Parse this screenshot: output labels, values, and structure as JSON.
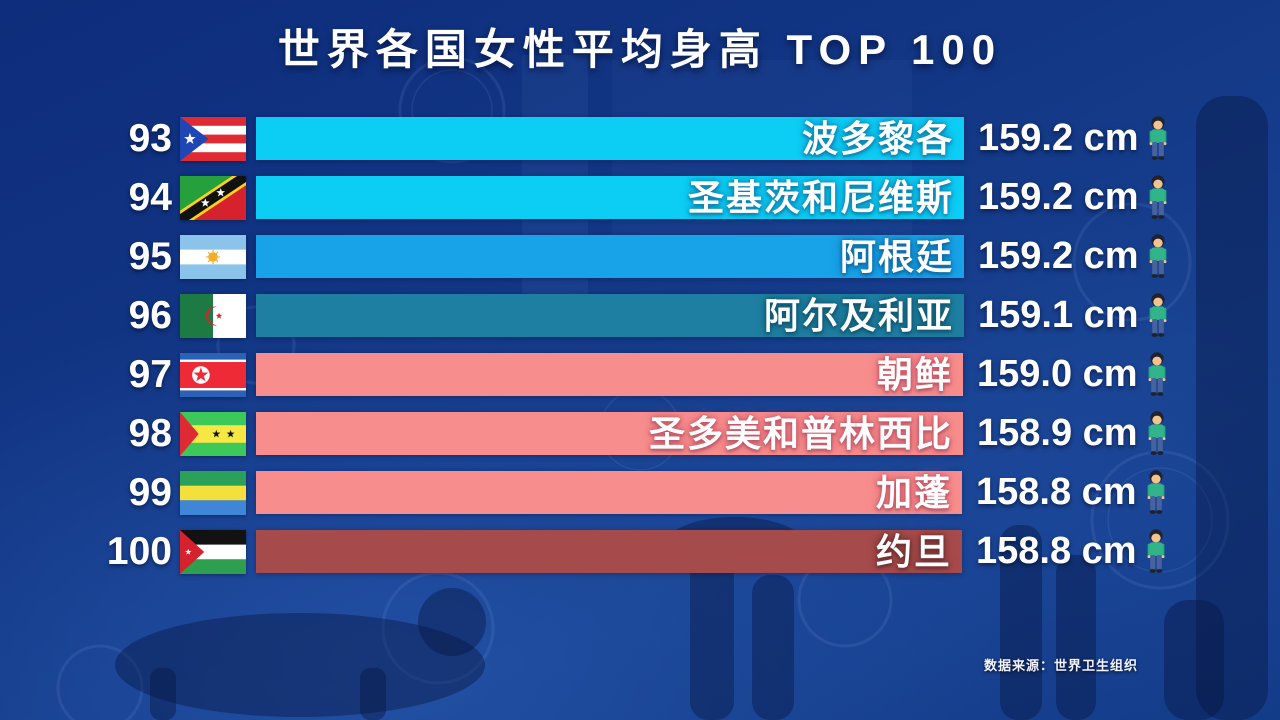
{
  "title": "世界各国女性平均身高 TOP 100",
  "source": "数据来源：世界卫生组织",
  "unit": "cm",
  "chart_data": {
    "type": "bar",
    "orientation": "horizontal",
    "title": "世界各国女性平均身高 TOP 100",
    "ranks": [
      93,
      94,
      95,
      96,
      97,
      98,
      99,
      100
    ],
    "categories": [
      "波多黎各",
      "圣基茨和尼维斯",
      "阿根廷",
      "阿尔及利亚",
      "朝鲜",
      "圣多美和普林西比",
      "加蓬",
      "约旦"
    ],
    "values": [
      159.2,
      159.2,
      159.2,
      159.1,
      159.0,
      158.9,
      158.8,
      158.8
    ],
    "unit": "cm",
    "axis_shown": false,
    "grid": false,
    "legend": null,
    "value_label_position": "outside-right",
    "category_label_position": "inside-right",
    "source": "数据来源：世界卫生组织"
  },
  "rows": [
    {
      "rank": "93",
      "country": "波多黎各",
      "value_label": "159.2 cm",
      "value": 159.2,
      "flag": "puerto-rico",
      "color": "#0ccef5",
      "glow": "#0a85b6"
    },
    {
      "rank": "94",
      "country": "圣基茨和尼维斯",
      "value_label": "159.2 cm",
      "value": 159.2,
      "flag": "saint-kitts-nevis",
      "color": "#0ccef5",
      "glow": "#0a85b6"
    },
    {
      "rank": "95",
      "country": "阿根廷",
      "value_label": "159.2 cm",
      "value": 159.2,
      "flag": "argentina",
      "color": "#18a2e8",
      "glow": "#0c6ca8"
    },
    {
      "rank": "96",
      "country": "阿尔及利亚",
      "value_label": "159.1 cm",
      "value": 159.1,
      "flag": "algeria",
      "color": "#1f7fa2",
      "glow": "#0f586f"
    },
    {
      "rank": "97",
      "country": "朝鲜",
      "value_label": "159.0 cm",
      "value": 159.0,
      "flag": "north-korea",
      "color": "#f78d8d",
      "glow": "#d05868"
    },
    {
      "rank": "98",
      "country": "圣多美和普林西比",
      "value_label": "158.9 cm",
      "value": 158.9,
      "flag": "sao-tome-principe",
      "color": "#f78d8d",
      "glow": "#d05868"
    },
    {
      "rank": "99",
      "country": "加蓬",
      "value_label": "158.8 cm",
      "value": 158.8,
      "flag": "gabon",
      "color": "#f78d8d",
      "glow": "#d05868"
    },
    {
      "rank": "100",
      "country": "约旦",
      "value_label": "158.8 cm",
      "value": 158.8,
      "flag": "jordan",
      "color": "#a64b4b",
      "glow": "#702e2e"
    }
  ]
}
